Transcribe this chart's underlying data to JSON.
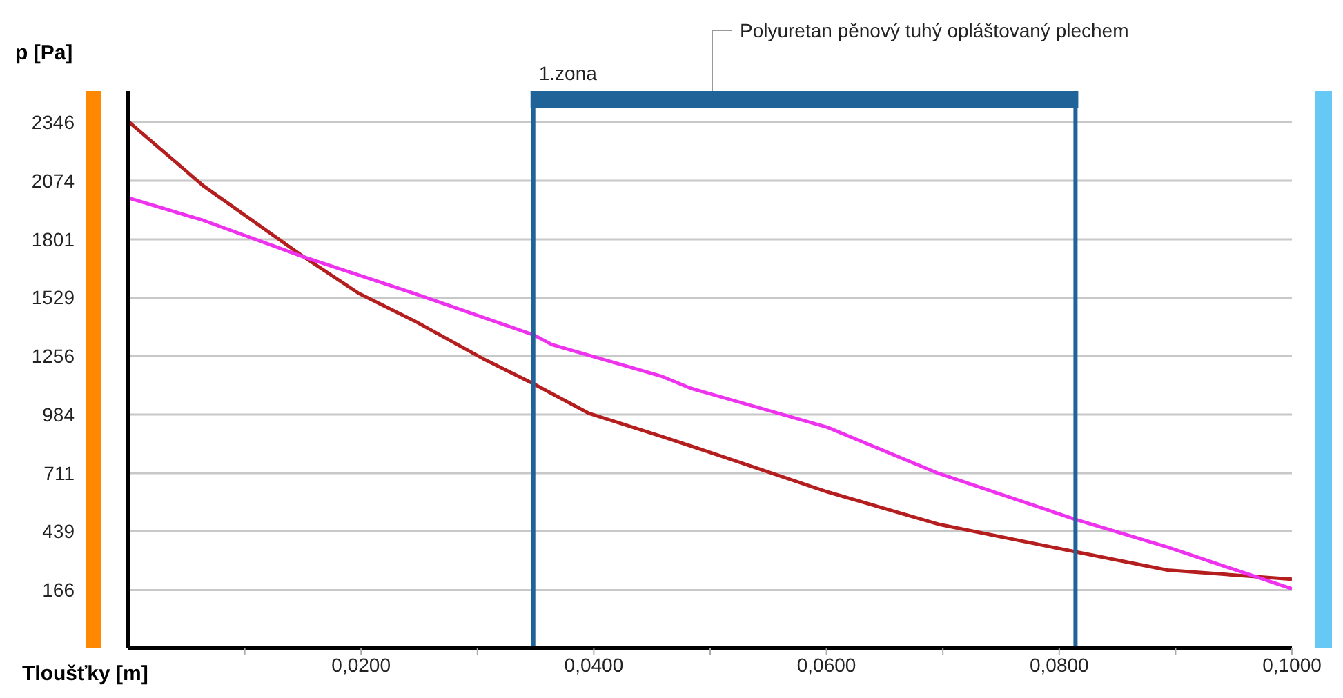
{
  "chart_data": {
    "type": "line",
    "xlabel": "Tloušťky [m]",
    "ylabel": "p [Pa]",
    "xlim": [
      0,
      0.1
    ],
    "ylim": [
      -106,
      2492
    ],
    "xticks": [
      {
        "value": 0.01,
        "label": null
      },
      {
        "value": 0.02,
        "label": "0,0200"
      },
      {
        "value": 0.03,
        "label": null
      },
      {
        "value": 0.04,
        "label": "0,0400"
      },
      {
        "value": 0.05,
        "label": null
      },
      {
        "value": 0.06,
        "label": "0,0600"
      },
      {
        "value": 0.07,
        "label": null
      },
      {
        "value": 0.08,
        "label": "0,0800"
      },
      {
        "value": 0.09,
        "label": null
      },
      {
        "value": 0.1,
        "label": "0,1000"
      }
    ],
    "yticks": [
      166,
      439,
      711,
      984,
      1256,
      1529,
      1801,
      2074,
      2346
    ],
    "grid": "y",
    "legend": false,
    "marker": "none",
    "line_style": "solid",
    "series": [
      {
        "color": "#b41e1e",
        "x": [
          0,
          0.0064,
          0.0151,
          0.0198,
          0.0246,
          0.0305,
          0.0348,
          0.0396,
          0.0459,
          0.0507,
          0.0601,
          0.0696,
          0.0814,
          0.0893,
          0.1
        ],
        "values": [
          2350,
          2052,
          1718,
          1549,
          1420,
          1244,
          1128,
          989,
          881,
          795,
          623,
          473,
          344,
          259,
          216
        ]
      },
      {
        "color": "#ee33ee",
        "x": [
          0,
          0.0064,
          0.0151,
          0.0246,
          0.0348,
          0.0364,
          0.0459,
          0.0483,
          0.0601,
          0.0696,
          0.0814,
          0.0893,
          0.1
        ],
        "values": [
          1994,
          1890,
          1718,
          1548,
          1356,
          1310,
          1161,
          1107,
          924,
          710,
          495,
          366,
          172
        ]
      }
    ],
    "ref_lines": [
      {
        "axis": "x",
        "value": 0.0348,
        "color": "#1f6399"
      },
      {
        "axis": "x",
        "value": 0.0814,
        "color": "#1f6399"
      }
    ],
    "annotations": [
      "1.zona",
      "Polyuretan pěnový tuhý opláštovaný plechem"
    ]
  }
}
